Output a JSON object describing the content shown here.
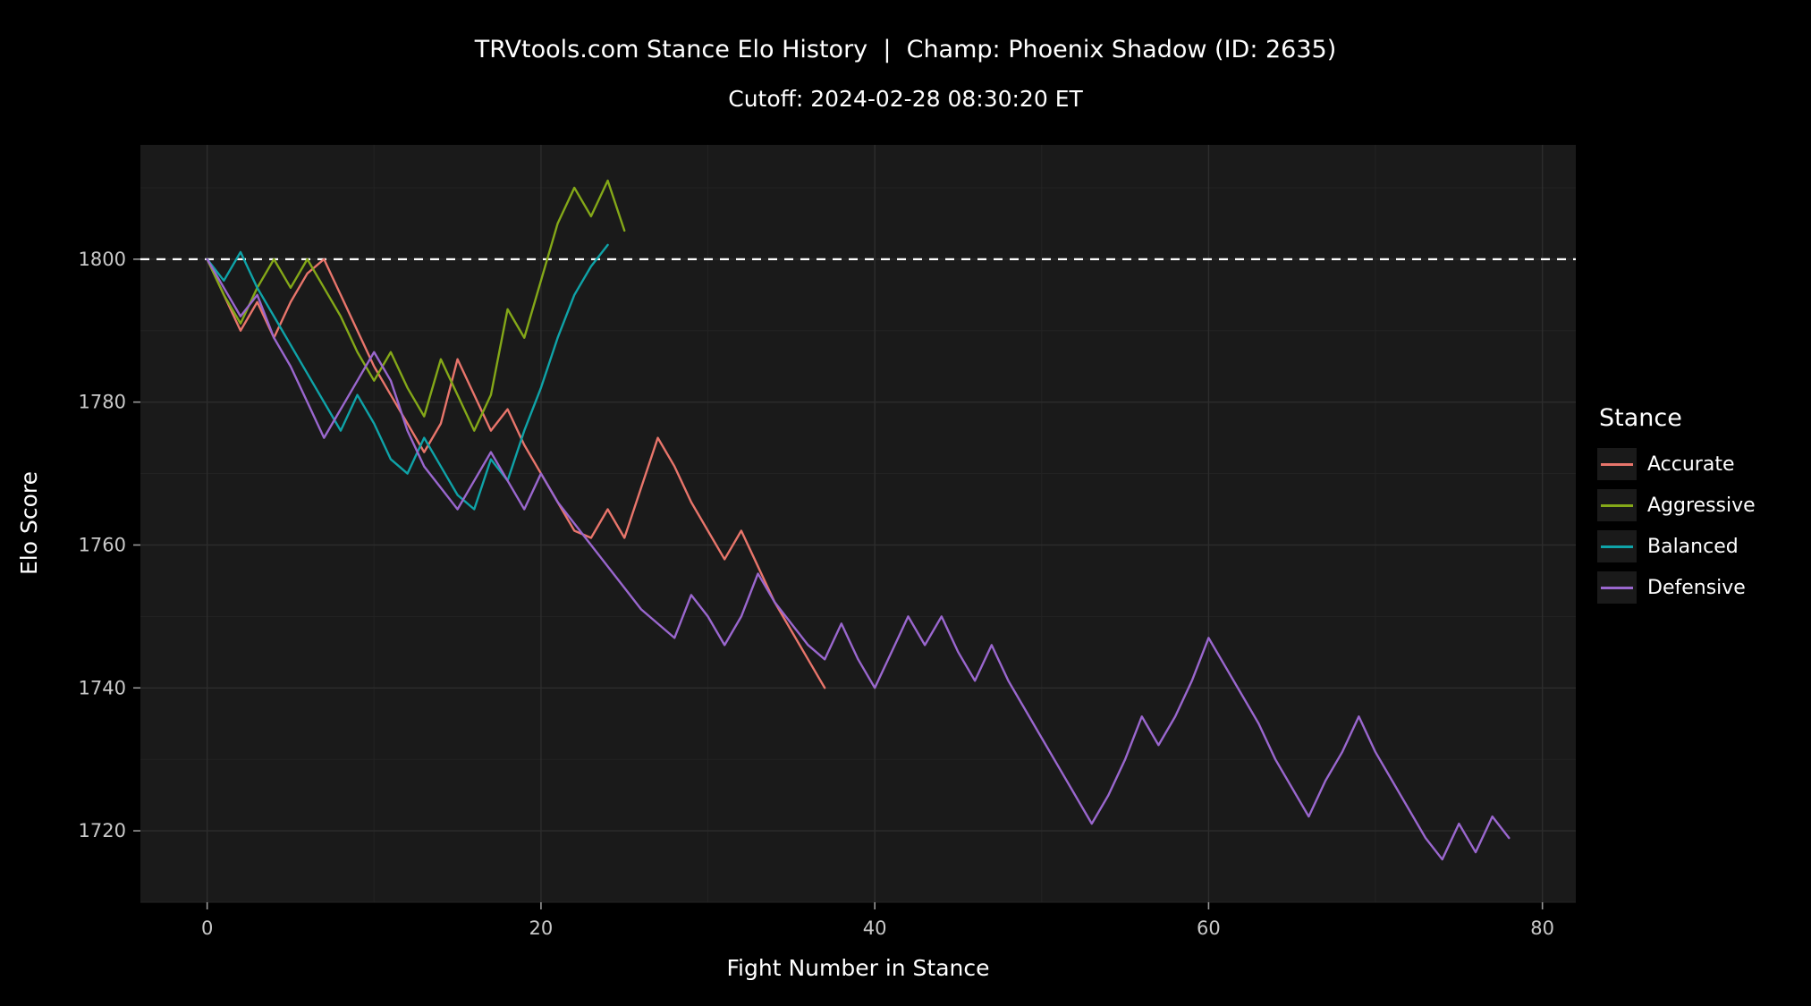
{
  "title": "TRVtools.com Stance Elo History  |  Champ: Phoenix Shadow (ID: 2635)",
  "subtitle": "Cutoff: 2024-02-28 08:30:20 ET",
  "axes": {
    "x_label": "Fight Number in Stance",
    "y_label": "Elo Score",
    "x_ticks": [
      0,
      20,
      40,
      60,
      80
    ],
    "y_ticks": [
      1720,
      1740,
      1760,
      1780,
      1800
    ],
    "x_domain": [
      -4,
      82
    ],
    "y_domain": [
      1710,
      1816
    ]
  },
  "colors": {
    "page_bg": "#000000",
    "panel_bg": "#1a1a1a",
    "grid_major": "#2d2d2d",
    "grid_minor": "#232323",
    "tick_text": "#c9c9c9",
    "tick_mark": "#999999",
    "reference_line": "#ffffff"
  },
  "legend": {
    "title": "Stance",
    "entries": [
      {
        "label": "Accurate",
        "color": "#E8756B"
      },
      {
        "label": "Aggressive",
        "color": "#84A818"
      },
      {
        "label": "Balanced",
        "color": "#0FA3A8"
      },
      {
        "label": "Defensive",
        "color": "#9A67CE"
      }
    ]
  },
  "reference_line": {
    "y": 1800,
    "style": "dashed",
    "color": "#ffffff"
  },
  "chart_data": {
    "type": "line",
    "title": "TRVtools.com Stance Elo History | Champ: Phoenix Shadow (ID: 2635)",
    "subtitle": "Cutoff: 2024-02-28 08:30:20 ET",
    "xlabel": "Fight Number in Stance",
    "ylabel": "Elo Score",
    "xlim": [
      -4,
      82
    ],
    "ylim": [
      1710,
      1816
    ],
    "x_start": 0,
    "x_step": 1,
    "grid": true,
    "legend_position": "right",
    "series": [
      {
        "name": "Accurate",
        "color": "#E8756B",
        "values": [
          1800,
          1795,
          1790,
          1794,
          1789,
          1794,
          1798,
          1800,
          1795,
          1790,
          1785,
          1781,
          1777,
          1773,
          1777,
          1786,
          1781,
          1776,
          1779,
          1774,
          1770,
          1766,
          1762,
          1761,
          1765,
          1761,
          1768,
          1775,
          1771,
          1766,
          1762,
          1758,
          1762,
          1757,
          1752,
          1748,
          1744,
          1740
        ]
      },
      {
        "name": "Aggressive",
        "color": "#84A818",
        "values": [
          1800,
          1795,
          1791,
          1796,
          1800,
          1796,
          1800,
          1796,
          1792,
          1787,
          1783,
          1787,
          1782,
          1778,
          1786,
          1781,
          1776,
          1781,
          1793,
          1789,
          1797,
          1805,
          1810,
          1806,
          1811,
          1804
        ]
      },
      {
        "name": "Balanced",
        "color": "#0FA3A8",
        "values": [
          1800,
          1797,
          1801,
          1796,
          1792,
          1788,
          1784,
          1780,
          1776,
          1781,
          1777,
          1772,
          1770,
          1775,
          1771,
          1767,
          1765,
          1772,
          1769,
          1776,
          1782,
          1789,
          1795,
          1799,
          1802
        ]
      },
      {
        "name": "Defensive",
        "color": "#9A67CE",
        "values": [
          1800,
          1796,
          1792,
          1795,
          1789,
          1785,
          1780,
          1775,
          1779,
          1783,
          1787,
          1783,
          1776,
          1771,
          1768,
          1765,
          1769,
          1773,
          1769,
          1765,
          1770,
          1766,
          1763,
          1760,
          1757,
          1754,
          1751,
          1749,
          1747,
          1753,
          1750,
          1746,
          1750,
          1756,
          1752,
          1749,
          1746,
          1744,
          1749,
          1744,
          1740,
          1745,
          1750,
          1746,
          1750,
          1745,
          1741,
          1746,
          1741,
          1737,
          1733,
          1729,
          1725,
          1721,
          1725,
          1730,
          1736,
          1732,
          1736,
          1741,
          1747,
          1743,
          1739,
          1735,
          1730,
          1726,
          1722,
          1727,
          1731,
          1736,
          1731,
          1727,
          1723,
          1719,
          1716,
          1721,
          1717,
          1722,
          1719
        ]
      }
    ]
  }
}
